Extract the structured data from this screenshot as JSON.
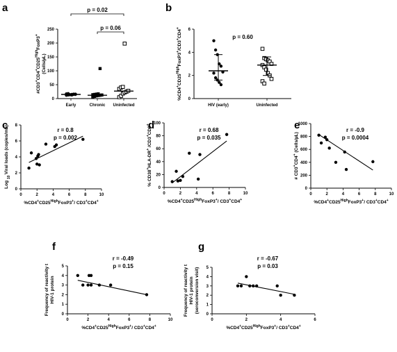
{
  "chart_data": [
    {
      "panel": "a",
      "type": "scatter",
      "ylabel": "#CD3+CD4+CD25HighFoxP3+ (Cells/µL)",
      "categories": [
        "Early",
        "Chronic",
        "Uninfected"
      ],
      "ylim": [
        0,
        250
      ],
      "yticks": [
        "0",
        "50",
        "100",
        "150",
        "200",
        "250"
      ],
      "series": [
        {
          "marker": "circle",
          "values": [
            12,
            13,
            14,
            15,
            15,
            16,
            17,
            18,
            14,
            13,
            16,
            15
          ]
        },
        {
          "marker": "square",
          "values": [
            5,
            8,
            10,
            11,
            12,
            13,
            14,
            15,
            16,
            17,
            108
          ]
        },
        {
          "marker": "open-square",
          "values": [
            5,
            10,
            18,
            22,
            25,
            28,
            35,
            40,
            42,
            198
          ]
        }
      ],
      "medians": [
        15,
        12,
        27
      ],
      "brackets": [
        {
          "from": "Early",
          "to": "Uninfected",
          "label": "p = 0.02"
        },
        {
          "from": "Chronic",
          "to": "Uninfected",
          "label": "p = 0.06"
        }
      ]
    },
    {
      "panel": "b",
      "type": "scatter",
      "title": "p = 0.60",
      "ylabel": "%CD4+CD25HighFoxP3+/CD3+CD4+",
      "categories": [
        "HIV (early)",
        "Uninfected"
      ],
      "ylim": [
        0,
        6
      ],
      "yticks": [
        "0",
        "2",
        "4",
        "6"
      ],
      "series": [
        {
          "marker": "circle",
          "values": [
            5.0,
            4.2,
            3.8,
            3.0,
            2.8,
            2.3,
            2.2,
            1.8,
            1.6,
            1.4,
            1.2
          ]
        },
        {
          "marker": "open-square",
          "values": [
            4.3,
            3.5,
            3.4,
            3.3,
            3.2,
            3.0,
            2.9,
            2.7,
            2.5,
            2.2,
            2.0,
            1.7,
            1.5,
            1.3
          ]
        }
      ],
      "medians": [
        2.4,
        2.9
      ],
      "errors": [
        [
          1.6,
          3.8
        ],
        [
          2.0,
          3.6
        ]
      ]
    },
    {
      "panel": "c",
      "type": "scatter",
      "title": "r = 0.8",
      "subtitle": "p = 0.002",
      "xlabel": "%CD4+CD25HighFoxP3+/ CD3+CD4+",
      "ylabel": "Log 10 Viral loads (copies/mL)",
      "xlim": [
        0,
        10
      ],
      "ylim": [
        0,
        8
      ],
      "xticks": [
        "0",
        "2",
        "4",
        "6",
        "8",
        "10"
      ],
      "yticks": [
        "0",
        "2",
        "4",
        "6",
        "8"
      ],
      "x": [
        1.0,
        1.3,
        1.9,
        2.0,
        2.1,
        2.2,
        2.3,
        3.1,
        4.2,
        4.4,
        7.7
      ],
      "y": [
        2.6,
        4.5,
        3.8,
        3.1,
        4.1,
        4.3,
        3.0,
        5.6,
        5.3,
        5.5,
        6.2
      ],
      "fit": [
        [
          1.0,
          3.3
        ],
        [
          7.7,
          6.6
        ]
      ]
    },
    {
      "panel": "d",
      "type": "scatter",
      "title": "r = 0.68",
      "subtitle": "p = 0.035",
      "xlabel": "%CD4+CD25HighFoxP3+/ CD3+CD4+",
      "ylabel": "% CD38+HLA-DR+ /CD3+CD8+",
      "xlim": [
        0,
        10
      ],
      "ylim": [
        0,
        100
      ],
      "xticks": [
        "0",
        "2",
        "4",
        "6",
        "8",
        "10"
      ],
      "yticks": [
        "0",
        "20",
        "40",
        "60",
        "80",
        "100"
      ],
      "x": [
        1.0,
        1.5,
        1.7,
        2.0,
        2.3,
        3.1,
        4.2,
        4.4,
        7.7
      ],
      "y": [
        9,
        25,
        10,
        11,
        17,
        53,
        13,
        51,
        82
      ],
      "fit": [
        [
          1.0,
          7
        ],
        [
          7.7,
          72
        ]
      ]
    },
    {
      "panel": "e",
      "type": "scatter",
      "title": "r = -0.9",
      "subtitle": "p = 0.0004",
      "xlabel": "%CD4+CD25HighFoxP3+/ CD3+CD4+",
      "ylabel": "# CD3+CD4+ (Cells/µL)",
      "xlim": [
        0,
        10
      ],
      "ylim": [
        0,
        1000
      ],
      "xticks": [
        "0",
        "2",
        "4",
        "6",
        "8",
        "10"
      ],
      "yticks": [
        "0",
        "200",
        "400",
        "600",
        "800",
        "1000"
      ],
      "x": [
        1.0,
        1.3,
        1.8,
        2.0,
        2.3,
        3.1,
        4.2,
        4.4,
        7.7
      ],
      "y": [
        820,
        700,
        790,
        750,
        620,
        400,
        560,
        290,
        410
      ],
      "fit": [
        [
          1.0,
          830
        ],
        [
          7.7,
          280
        ]
      ]
    },
    {
      "panel": "f",
      "type": "scatter",
      "title": "r = -0.49",
      "subtitle": "p = 0.15",
      "xlabel": "%CD4+CD25HighFoxP3+/ CD3+CD4+",
      "ylabel": "Frequency of reactivity to HIV-1 proteins",
      "xlim": [
        0,
        10
      ],
      "ylim": [
        0,
        5
      ],
      "xticks": [
        "0",
        "2",
        "4",
        "6",
        "8",
        "10"
      ],
      "yticks": [
        "0",
        "1",
        "2",
        "3",
        "4",
        "5"
      ],
      "x": [
        1.0,
        1.5,
        2.0,
        2.1,
        2.3,
        2.3,
        3.1,
        4.2,
        7.7
      ],
      "y": [
        4,
        3,
        3,
        4,
        3,
        4,
        3,
        3,
        2
      ],
      "fit": [
        [
          1.0,
          3.5
        ],
        [
          7.7,
          2.0
        ]
      ]
    },
    {
      "panel": "g",
      "type": "scatter",
      "title": "r = -0.67",
      "subtitle": "p = 0.03",
      "xlabel": "%CD4+CD25HighFoxP3+/ CD3+CD4+",
      "ylabel": "Frequency of reactivity to HIV-1 proteins (seroconversion visit)",
      "xlim": [
        0,
        6
      ],
      "ylim": [
        0,
        5
      ],
      "xticks": [
        "0",
        "2",
        "4",
        "6"
      ],
      "yticks": [
        "0",
        "1",
        "2",
        "3",
        "4",
        "5"
      ],
      "x": [
        1.5,
        1.7,
        2.0,
        2.2,
        2.4,
        2.6,
        3.8,
        4.0,
        4.8
      ],
      "y": [
        3,
        3,
        4,
        3,
        3,
        3,
        3,
        2,
        2
      ],
      "fit": [
        [
          1.5,
          3.3
        ],
        [
          4.8,
          2.1
        ]
      ]
    }
  ]
}
